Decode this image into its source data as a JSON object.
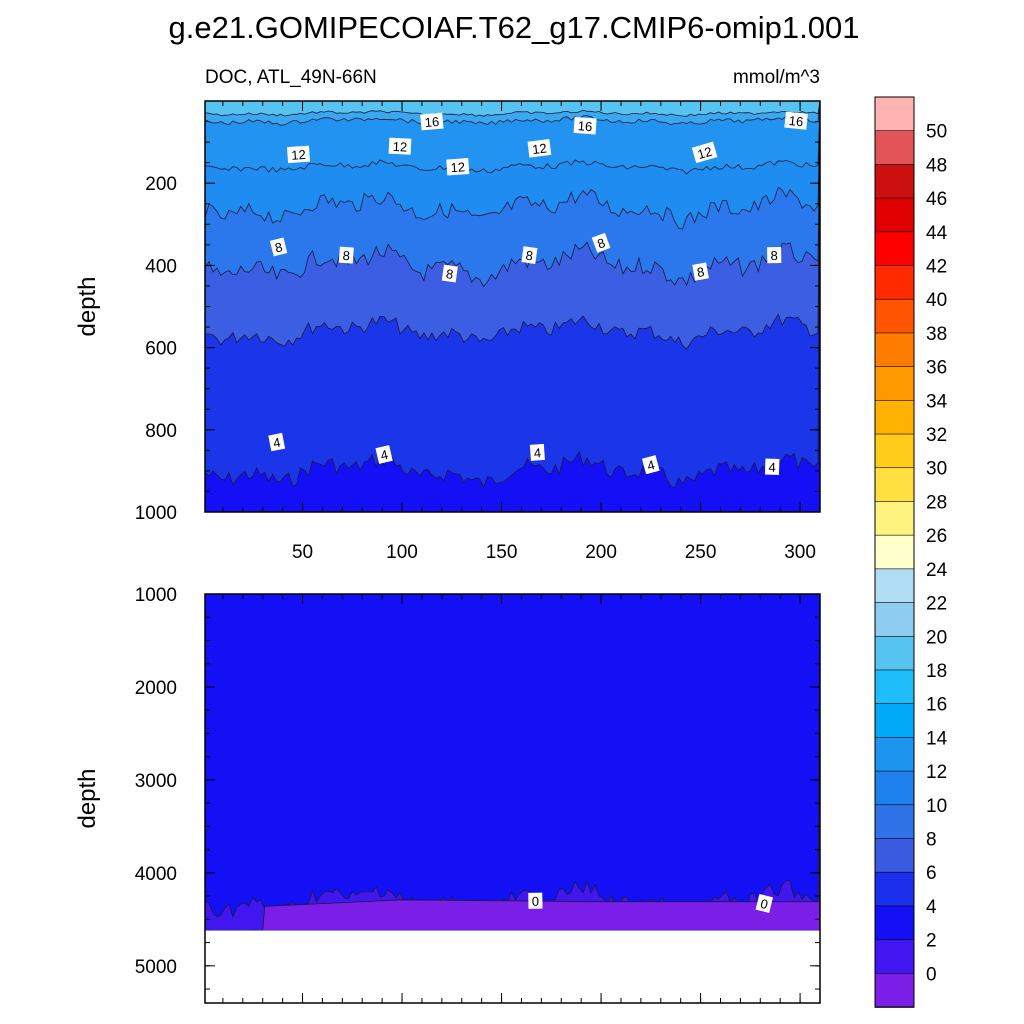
{
  "title": "g.e21.GOMIPECOIAF.T62_g17.CMIP6-omip1.001",
  "subtitle_left": "DOC, ATL_49N-66N",
  "subtitle_right": "mmol/m^3",
  "chart_data": [
    {
      "type": "heatmap",
      "panel": "upper",
      "xlabel": "",
      "ylabel": "depth",
      "xlim": [
        1,
        310
      ],
      "ylim": [
        1000,
        0
      ],
      "xticks": [
        50,
        100,
        150,
        200,
        250,
        300
      ],
      "yticks": [
        200,
        400,
        600,
        800,
        1000
      ],
      "contour_bands": [
        {
          "value": 18,
          "depth_at_top": 0,
          "mean_depth": 12,
          "color": "#56c3f0"
        },
        {
          "value": 16,
          "mean_depth": 30,
          "color": "#3aa7ef"
        },
        {
          "value": 14,
          "mean_depth": 48,
          "color": "#2293f0"
        },
        {
          "value": 12,
          "mean_depth": 160,
          "color": "#1e8cf0"
        },
        {
          "value": 10,
          "mean_depth": 260,
          "color": "#2a78ec"
        },
        {
          "value": 8,
          "mean_depth": 400,
          "color": "#3b5ee3"
        },
        {
          "value": 6,
          "mean_depth": 560,
          "color": "#1b36e8"
        },
        {
          "value": 4,
          "mean_depth": 900,
          "color": "#1410f5"
        }
      ],
      "contour_labels": [
        {
          "text": "16",
          "x": 115,
          "depth": 50
        },
        {
          "text": "16",
          "x": 192,
          "depth": 60
        },
        {
          "text": "16",
          "x": 298,
          "depth": 48
        },
        {
          "text": "12",
          "x": 48,
          "depth": 130
        },
        {
          "text": "12",
          "x": 99,
          "depth": 110
        },
        {
          "text": "12",
          "x": 128,
          "depth": 160
        },
        {
          "text": "12",
          "x": 169,
          "depth": 115
        },
        {
          "text": "12",
          "x": 252,
          "depth": 125
        },
        {
          "text": "8",
          "x": 38,
          "depth": 355
        },
        {
          "text": "8",
          "x": 72,
          "depth": 375
        },
        {
          "text": "8",
          "x": 124,
          "depth": 420
        },
        {
          "text": "8",
          "x": 164,
          "depth": 375
        },
        {
          "text": "8",
          "x": 200,
          "depth": 345
        },
        {
          "text": "8",
          "x": 250,
          "depth": 415
        },
        {
          "text": "8",
          "x": 287,
          "depth": 375
        },
        {
          "text": "4",
          "x": 37,
          "depth": 830
        },
        {
          "text": "4",
          "x": 91,
          "depth": 860
        },
        {
          "text": "4",
          "x": 168,
          "depth": 855
        },
        {
          "text": "4",
          "x": 225,
          "depth": 885
        },
        {
          "text": "4",
          "x": 286,
          "depth": 890
        }
      ]
    },
    {
      "type": "heatmap",
      "panel": "lower",
      "xlabel": "",
      "ylabel": "depth",
      "xlim": [
        1,
        310
      ],
      "ylim": [
        5400,
        1000
      ],
      "yticks": [
        1000,
        2000,
        3000,
        4000,
        5000
      ],
      "bottom_of_data_depth": 4620,
      "contour_bands": [
        {
          "value": 2,
          "mean_depth": 1850,
          "color": "#1410f5"
        },
        {
          "value": 0,
          "mean_depth": 4300,
          "color": "#4216f0"
        },
        {
          "value": -2,
          "mean_depth": 4620,
          "color": "#7a1ee8"
        }
      ],
      "contour_labels": [
        {
          "text": "0",
          "x": 167,
          "depth": 4300
        },
        {
          "text": "0",
          "x": 282,
          "depth": 4330
        }
      ]
    }
  ],
  "colorbar": {
    "labels": [
      "50",
      "48",
      "46",
      "44",
      "42",
      "40",
      "38",
      "36",
      "34",
      "32",
      "30",
      "28",
      "26",
      "24",
      "22",
      "20",
      "18",
      "16",
      "14",
      "12",
      "10",
      "8",
      "6",
      "4",
      "2",
      "0"
    ],
    "colors": [
      "#ffb4b4",
      "#e25457",
      "#cc1010",
      "#e00000",
      "#ff0000",
      "#ff2a00",
      "#ff5500",
      "#ff7c00",
      "#ff9900",
      "#ffb300",
      "#ffcc1a",
      "#ffe040",
      "#fff380",
      "#ffffcc",
      "#b0dcf4",
      "#8ecdf0",
      "#56c3f0",
      "#1ebcf8",
      "#00aaf8",
      "#1c95ee",
      "#1e80ec",
      "#3072e8",
      "#3a5ae0",
      "#1a30ec",
      "#1410f5",
      "#4216f0",
      "#7a1ee8"
    ]
  }
}
